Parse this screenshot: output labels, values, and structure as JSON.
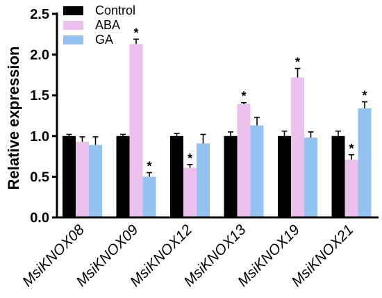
{
  "chart_data": {
    "type": "bar",
    "title": "",
    "xlabel": "",
    "ylabel": "Relative expression",
    "ylim": [
      0,
      2.5
    ],
    "yticks": [
      "0.0",
      "0.5",
      "1.0",
      "1.5",
      "2.0",
      "2.5"
    ],
    "grid": false,
    "legend_position": "top-left",
    "categories": [
      "MsiKNOX08",
      "MsiKNOX09",
      "MsiKNOX12",
      "MsiKNOX13",
      "MsiKNOX19",
      "MsiKNOX21"
    ],
    "series": [
      {
        "name": "Control",
        "color": "#000000",
        "values": [
          1.0,
          1.0,
          1.0,
          1.0,
          1.0,
          1.0
        ],
        "errors": [
          0.02,
          0.02,
          0.03,
          0.05,
          0.06,
          0.06
        ],
        "significant": [
          false,
          false,
          false,
          false,
          false,
          false
        ]
      },
      {
        "name": "ABA",
        "color": "#ecc0ec",
        "values": [
          0.93,
          2.13,
          0.61,
          1.39,
          1.72,
          0.71
        ],
        "errors": [
          0.06,
          0.06,
          0.04,
          0.02,
          0.11,
          0.06
        ],
        "significant": [
          false,
          true,
          true,
          true,
          true,
          true
        ]
      },
      {
        "name": "GA",
        "color": "#92c3f3",
        "values": [
          0.89,
          0.5,
          0.91,
          1.13,
          0.98,
          1.34
        ],
        "errors": [
          0.1,
          0.05,
          0.11,
          0.1,
          0.07,
          0.08
        ],
        "significant": [
          false,
          true,
          false,
          false,
          false,
          true
        ]
      }
    ],
    "significance_marker": "*"
  }
}
